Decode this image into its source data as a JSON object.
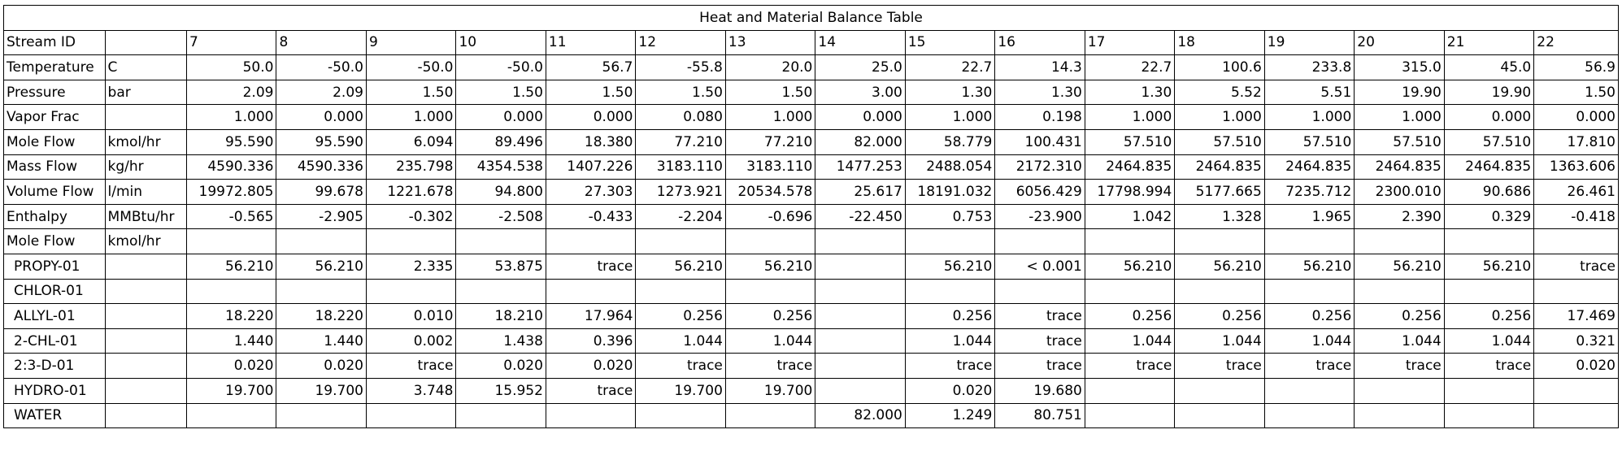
{
  "table": {
    "title": "Heat and Material Balance Table",
    "rows": [
      {
        "label": "Stream ID",
        "unit": "",
        "values": [
          "7",
          "8",
          "9",
          "10",
          "11",
          "12",
          "13",
          "14",
          "15",
          "16",
          "17",
          "18",
          "19",
          "20",
          "21",
          "22"
        ]
      },
      {
        "label": "Temperature",
        "unit": "C",
        "values": [
          "50.0",
          "-50.0",
          "-50.0",
          "-50.0",
          "56.7",
          "-55.8",
          "20.0",
          "25.0",
          "22.7",
          "14.3",
          "22.7",
          "100.6",
          "233.8",
          "315.0",
          "45.0",
          "56.9"
        ]
      },
      {
        "label": "Pressure",
        "unit": "bar",
        "values": [
          "2.09",
          "2.09",
          "1.50",
          "1.50",
          "1.50",
          "1.50",
          "1.50",
          "3.00",
          "1.30",
          "1.30",
          "1.30",
          "5.52",
          "5.51",
          "19.90",
          "19.90",
          "1.50"
        ]
      },
      {
        "label": "Vapor Frac",
        "unit": "",
        "values": [
          "1.000",
          "0.000",
          "1.000",
          "0.000",
          "0.000",
          "0.080",
          "1.000",
          "0.000",
          "1.000",
          "0.198",
          "1.000",
          "1.000",
          "1.000",
          "1.000",
          "0.000",
          "0.000"
        ]
      },
      {
        "label": "Mole Flow",
        "unit": "kmol/hr",
        "values": [
          "95.590",
          "95.590",
          "6.094",
          "89.496",
          "18.380",
          "77.210",
          "77.210",
          "82.000",
          "58.779",
          "100.431",
          "57.510",
          "57.510",
          "57.510",
          "57.510",
          "57.510",
          "17.810"
        ]
      },
      {
        "label": "Mass Flow",
        "unit": "kg/hr",
        "values": [
          "4590.336",
          "4590.336",
          "235.798",
          "4354.538",
          "1407.226",
          "3183.110",
          "3183.110",
          "1477.253",
          "2488.054",
          "2172.310",
          "2464.835",
          "2464.835",
          "2464.835",
          "2464.835",
          "2464.835",
          "1363.606"
        ]
      },
      {
        "label": "Volume Flow",
        "unit": "l/min",
        "values": [
          "19972.805",
          "99.678",
          "1221.678",
          "94.800",
          "27.303",
          "1273.921",
          "20534.578",
          "25.617",
          "18191.032",
          "6056.429",
          "17798.994",
          "5177.665",
          "7235.712",
          "2300.010",
          "90.686",
          "26.461"
        ]
      },
      {
        "label": "Enthalpy",
        "unit": "MMBtu/hr",
        "values": [
          "-0.565",
          "-2.905",
          "-0.302",
          "-2.508",
          "-0.433",
          "-2.204",
          "-0.696",
          "-22.450",
          "0.753",
          "-23.900",
          "1.042",
          "1.328",
          "1.965",
          "2.390",
          "0.329",
          "-0.418"
        ]
      },
      {
        "label": "Mole Flow",
        "unit": "kmol/hr",
        "values": [
          "",
          "",
          "",
          "",
          "",
          "",
          "",
          "",
          "",
          "",
          "",
          "",
          "",
          "",
          "",
          ""
        ]
      },
      {
        "label": "PROPY-01",
        "unit": "",
        "values": [
          "56.210",
          "56.210",
          "2.335",
          "53.875",
          "trace",
          "56.210",
          "56.210",
          "",
          "56.210",
          "< 0.001",
          "56.210",
          "56.210",
          "56.210",
          "56.210",
          "56.210",
          "trace"
        ]
      },
      {
        "label": "CHLOR-01",
        "unit": "",
        "values": [
          "",
          "",
          "",
          "",
          "",
          "",
          "",
          "",
          "",
          "",
          "",
          "",
          "",
          "",
          "",
          ""
        ]
      },
      {
        "label": "ALLYL-01",
        "unit": "",
        "values": [
          "18.220",
          "18.220",
          "0.010",
          "18.210",
          "17.964",
          "0.256",
          "0.256",
          "",
          "0.256",
          "trace",
          "0.256",
          "0.256",
          "0.256",
          "0.256",
          "0.256",
          "17.469"
        ]
      },
      {
        "label": "2-CHL-01",
        "unit": "",
        "values": [
          "1.440",
          "1.440",
          "0.002",
          "1.438",
          "0.396",
          "1.044",
          "1.044",
          "",
          "1.044",
          "trace",
          "1.044",
          "1.044",
          "1.044",
          "1.044",
          "1.044",
          "0.321"
        ]
      },
      {
        "label": "2:3-D-01",
        "unit": "",
        "values": [
          "0.020",
          "0.020",
          "trace",
          "0.020",
          "0.020",
          "trace",
          "trace",
          "",
          "trace",
          "trace",
          "trace",
          "trace",
          "trace",
          "trace",
          "trace",
          "0.020"
        ]
      },
      {
        "label": "HYDRO-01",
        "unit": "",
        "values": [
          "19.700",
          "19.700",
          "3.748",
          "15.952",
          "trace",
          "19.700",
          "19.700",
          "",
          "0.020",
          "19.680",
          "",
          "",
          "",
          "",
          "",
          ""
        ]
      },
      {
        "label": "WATER",
        "unit": "",
        "values": [
          "",
          "",
          "",
          "",
          "",
          "",
          "",
          "82.000",
          "1.249",
          "80.751",
          "",
          "",
          "",
          "",
          "",
          ""
        ]
      }
    ]
  }
}
